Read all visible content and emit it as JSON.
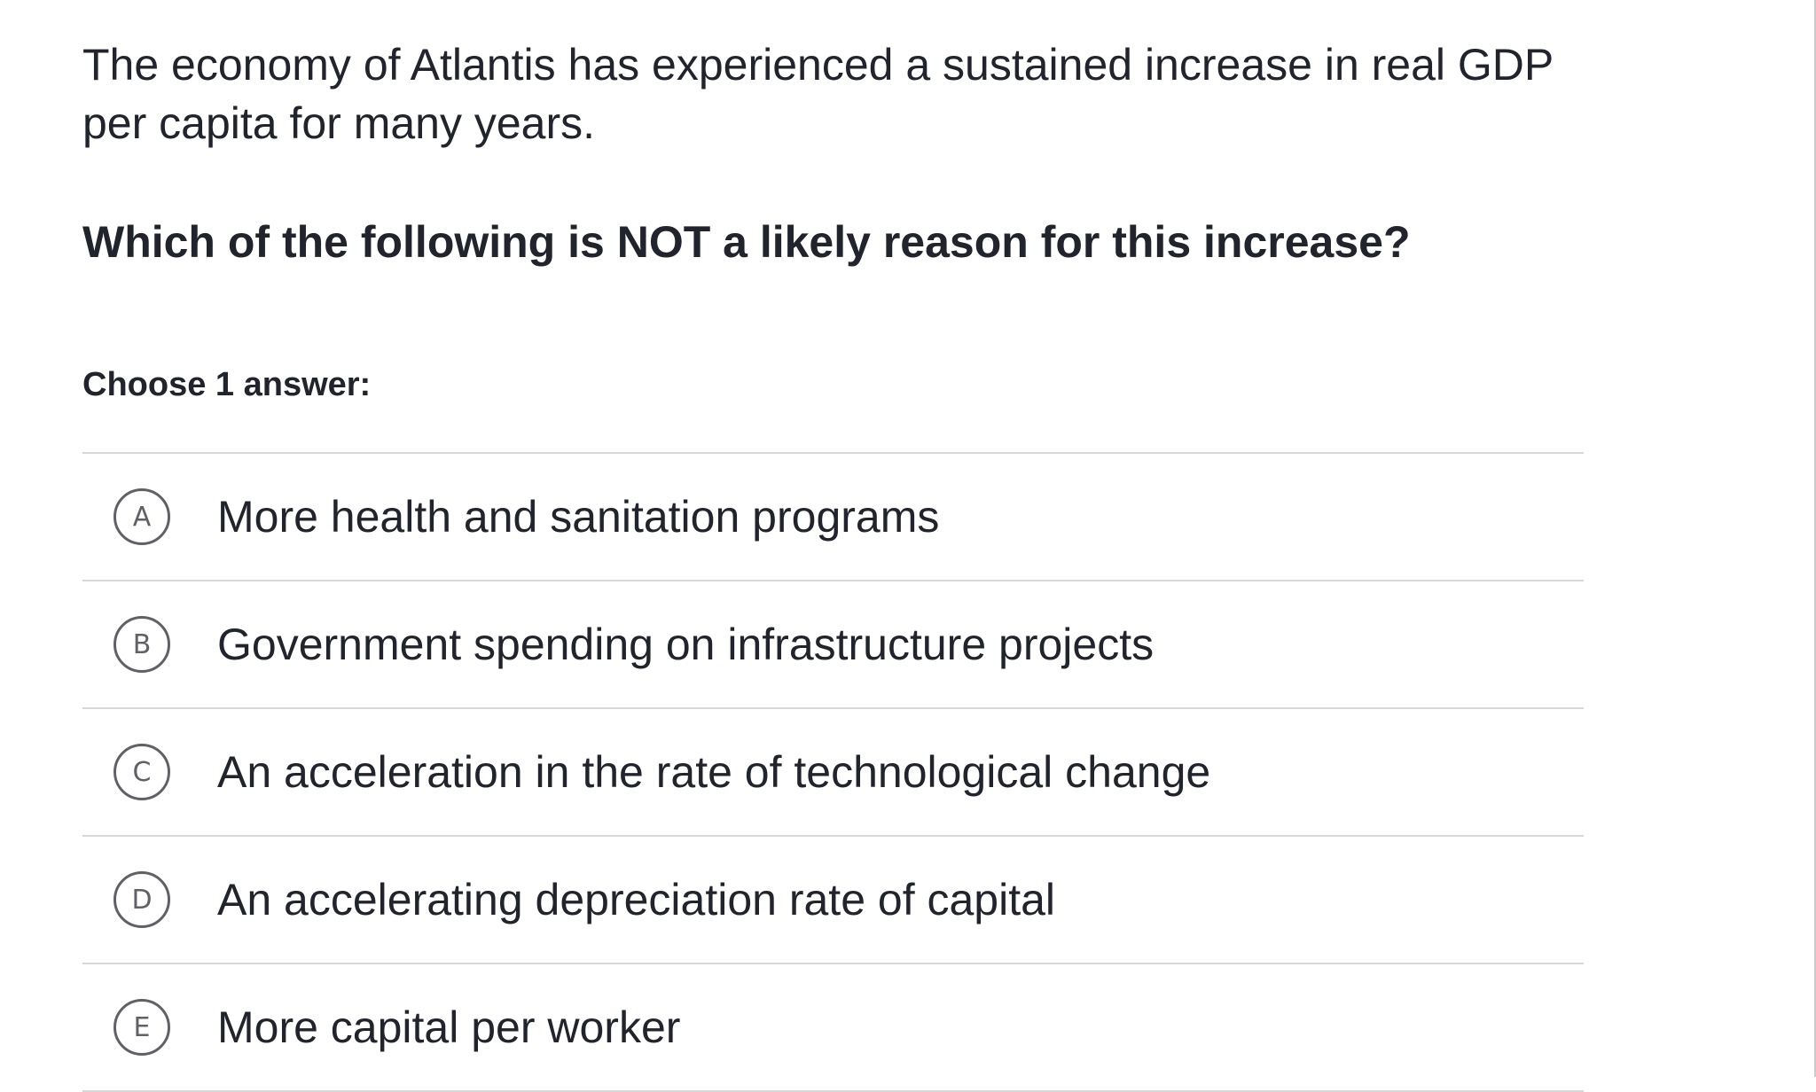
{
  "prompt": "The economy of Atlantis has experienced a sustained increase in real GDP per capita for many years.",
  "question": "Which of the following is NOT a likely reason for this increase?",
  "instruction": "Choose 1 answer:",
  "choices": [
    {
      "letter": "A",
      "text": "More health and sanitation programs"
    },
    {
      "letter": "B",
      "text": "Government spending on infrastructure projects"
    },
    {
      "letter": "C",
      "text": "An acceleration in the rate of technological change"
    },
    {
      "letter": "D",
      "text": "An accelerating depreciation rate of capital"
    },
    {
      "letter": "E",
      "text": "More capital per worker"
    }
  ],
  "colors": {
    "text": "#21242c",
    "divider": "#d6d8da",
    "choice_circle": "#5f6167"
  }
}
